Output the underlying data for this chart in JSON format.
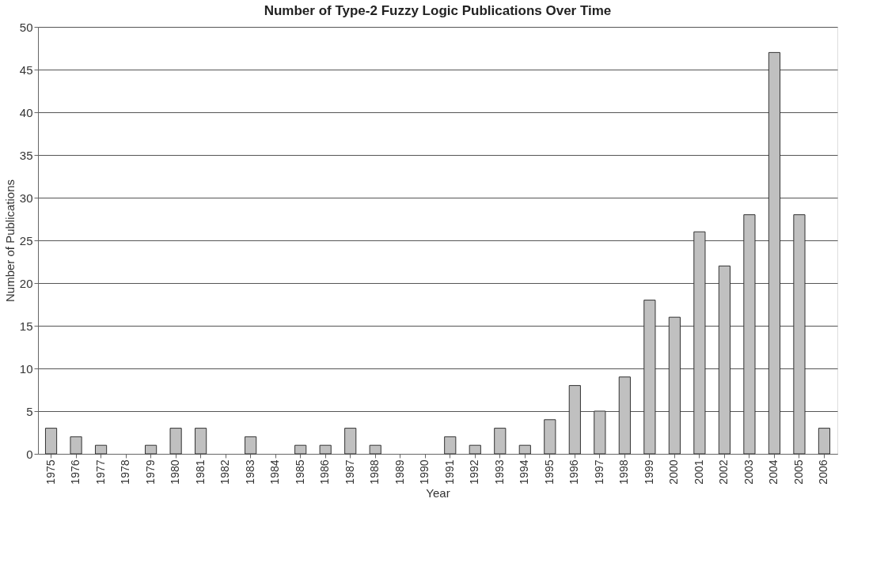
{
  "chart_data": {
    "type": "bar",
    "title": "Number of Type-2 Fuzzy Logic Publications Over Time",
    "xlabel": "Year",
    "ylabel": "Number of Publications",
    "categories": [
      "1975",
      "1976",
      "1977",
      "1978",
      "1979",
      "1980",
      "1981",
      "1982",
      "1983",
      "1984",
      "1985",
      "1986",
      "1987",
      "1988",
      "1989",
      "1990",
      "1991",
      "1992",
      "1993",
      "1994",
      "1995",
      "1996",
      "1997",
      "1998",
      "1999",
      "2000",
      "2001",
      "2002",
      "2003",
      "2004",
      "2005",
      "2006"
    ],
    "values": [
      3,
      2,
      1,
      0,
      1,
      3,
      3,
      0,
      2,
      0,
      1,
      1,
      3,
      1,
      0,
      0,
      2,
      1,
      3,
      1,
      4,
      8,
      5,
      9,
      18,
      16,
      26,
      22,
      28,
      47,
      28,
      3
    ],
    "color": "#c0c0c0",
    "ylim": [
      0,
      50
    ],
    "yticks": [
      0,
      5,
      10,
      15,
      20,
      25,
      30,
      35,
      40,
      45,
      50
    ],
    "grid": "y"
  }
}
